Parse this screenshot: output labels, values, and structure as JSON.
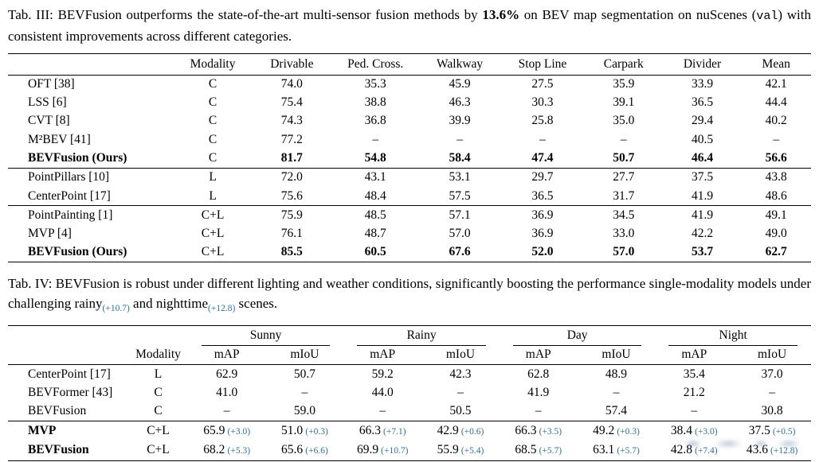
{
  "colors": {
    "text": "#000000",
    "rule": "#000000",
    "delta": "#31708f"
  },
  "table3": {
    "caption_segments": [
      {
        "t": "Tab. III: BEVFusion outperforms the state-of-the-art multi-sensor fusion methods by ",
        "s": ""
      },
      {
        "t": "13.6%",
        "s": "b"
      },
      {
        "t": " on BEV map segmentation on nuScenes (",
        "s": ""
      },
      {
        "t": "val",
        "s": "mono"
      },
      {
        "t": ") with consistent improvements across different categories.",
        "s": ""
      }
    ],
    "columns": [
      "",
      "Modality",
      "Drivable",
      "Ped. Cross.",
      "Walkway",
      "Stop Line",
      "Carpark",
      "Divider",
      "Mean"
    ],
    "groups": [
      {
        "rows": [
          {
            "method": "OFT [38]",
            "bold": false,
            "values": [
              "C",
              "74.0",
              "35.3",
              "45.9",
              "27.5",
              "35.9",
              "33.9",
              "42.1"
            ]
          },
          {
            "method": "LSS [6]",
            "bold": false,
            "values": [
              "C",
              "75.4",
              "38.8",
              "46.3",
              "30.3",
              "39.1",
              "36.5",
              "44.4"
            ]
          },
          {
            "method": "CVT [8]",
            "bold": false,
            "values": [
              "C",
              "74.3",
              "36.8",
              "39.9",
              "25.8",
              "35.0",
              "29.4",
              "40.2"
            ]
          },
          {
            "method": "M²BEV [41]",
            "bold": false,
            "values": [
              "C",
              "77.2",
              "–",
              "–",
              "–",
              "–",
              "40.5",
              "–"
            ]
          },
          {
            "method": "BEVFusion (Ours)",
            "bold": true,
            "values": [
              "C",
              "81.7",
              "54.8",
              "58.4",
              "47.4",
              "50.7",
              "46.4",
              "56.6"
            ]
          }
        ]
      },
      {
        "rows": [
          {
            "method": "PointPillars [10]",
            "bold": false,
            "values": [
              "L",
              "72.0",
              "43.1",
              "53.1",
              "29.7",
              "27.7",
              "37.5",
              "43.8"
            ]
          },
          {
            "method": "CenterPoint [17]",
            "bold": false,
            "values": [
              "L",
              "75.6",
              "48.4",
              "57.5",
              "36.5",
              "31.7",
              "41.9",
              "48.6"
            ]
          }
        ]
      },
      {
        "rows": [
          {
            "method": "PointPainting [1]",
            "bold": false,
            "values": [
              "C+L",
              "75.9",
              "48.5",
              "57.1",
              "36.9",
              "34.5",
              "41.9",
              "49.1"
            ]
          },
          {
            "method": "MVP [4]",
            "bold": false,
            "values": [
              "C+L",
              "76.1",
              "48.7",
              "57.0",
              "36.9",
              "33.0",
              "42.2",
              "49.0"
            ]
          },
          {
            "method": "BEVFusion (Ours)",
            "bold": true,
            "values": [
              "C+L",
              "85.5",
              "60.5",
              "67.6",
              "52.0",
              "57.0",
              "53.7",
              "62.7"
            ]
          }
        ]
      }
    ]
  },
  "table4": {
    "caption_segments": [
      {
        "t": "Tab. IV: BEVFusion is robust under different lighting and weather conditions, significantly boosting the performance single-modality models under challenging rainy",
        "s": ""
      },
      {
        "t": "(+10.7)",
        "s": "dsub"
      },
      {
        "t": " and nighttime",
        "s": ""
      },
      {
        "t": "(+12.8)",
        "s": "dsub"
      },
      {
        "t": " scenes.",
        "s": ""
      }
    ],
    "group_headers": [
      "Sunny",
      "Rainy",
      "Day",
      "Night"
    ],
    "sub_headers": [
      "Modality",
      "mAP",
      "mIoU",
      "mAP",
      "mIoU",
      "mAP",
      "mIoU",
      "mAP",
      "mIoU"
    ],
    "groups": [
      {
        "rows": [
          {
            "method": "CenterPoint [17]",
            "bold": false,
            "modality": "L",
            "cells": [
              {
                "v": "62.9"
              },
              {
                "v": "50.7"
              },
              {
                "v": "59.2"
              },
              {
                "v": "42.3"
              },
              {
                "v": "62.8"
              },
              {
                "v": "48.9"
              },
              {
                "v": "35.4"
              },
              {
                "v": "37.0"
              }
            ]
          },
          {
            "method": "BEVFormer [43]",
            "bold": false,
            "modality": "C",
            "cells": [
              {
                "v": "41.0"
              },
              {
                "v": "–"
              },
              {
                "v": "44.0"
              },
              {
                "v": "–"
              },
              {
                "v": "41.9"
              },
              {
                "v": "–"
              },
              {
                "v": "21.2"
              },
              {
                "v": "–"
              }
            ]
          },
          {
            "method": "BEVFusion",
            "bold": false,
            "modality": "C",
            "cells": [
              {
                "v": "–"
              },
              {
                "v": "59.0"
              },
              {
                "v": "–"
              },
              {
                "v": "50.5"
              },
              {
                "v": "–"
              },
              {
                "v": "57.4"
              },
              {
                "v": "–"
              },
              {
                "v": "30.8"
              }
            ]
          }
        ]
      },
      {
        "rows": [
          {
            "method": "MVP",
            "bold": true,
            "modality": "C+L",
            "cells": [
              {
                "v": "65.9",
                "d": "(+3.0)"
              },
              {
                "v": "51.0",
                "d": "(+0.3)"
              },
              {
                "v": "66.3",
                "d": "(+7.1)"
              },
              {
                "v": "42.9",
                "d": "(+0.6)"
              },
              {
                "v": "66.3",
                "d": "(+3.5)"
              },
              {
                "v": "49.2",
                "d": "(+0.3)"
              },
              {
                "v": "38.4",
                "d": "(+3.0)"
              },
              {
                "v": "37.5",
                "d": "(+0.5)"
              }
            ]
          },
          {
            "method": "BEVFusion",
            "bold": true,
            "modality": "C+L",
            "cells": [
              {
                "v": "68.2",
                "d": "(+5.3)"
              },
              {
                "v": "65.6",
                "d": "(+6.6)"
              },
              {
                "v": "69.9",
                "d": "(+10.7)"
              },
              {
                "v": "55.9",
                "d": "(+5.4)"
              },
              {
                "v": "68.5",
                "d": "(+5.7)"
              },
              {
                "v": "63.1",
                "d": "(+5.7)"
              },
              {
                "v": "42.8",
                "d": "(+7.4)"
              },
              {
                "v": "43.6",
                "d": "(+12.8)"
              }
            ]
          }
        ]
      }
    ]
  }
}
